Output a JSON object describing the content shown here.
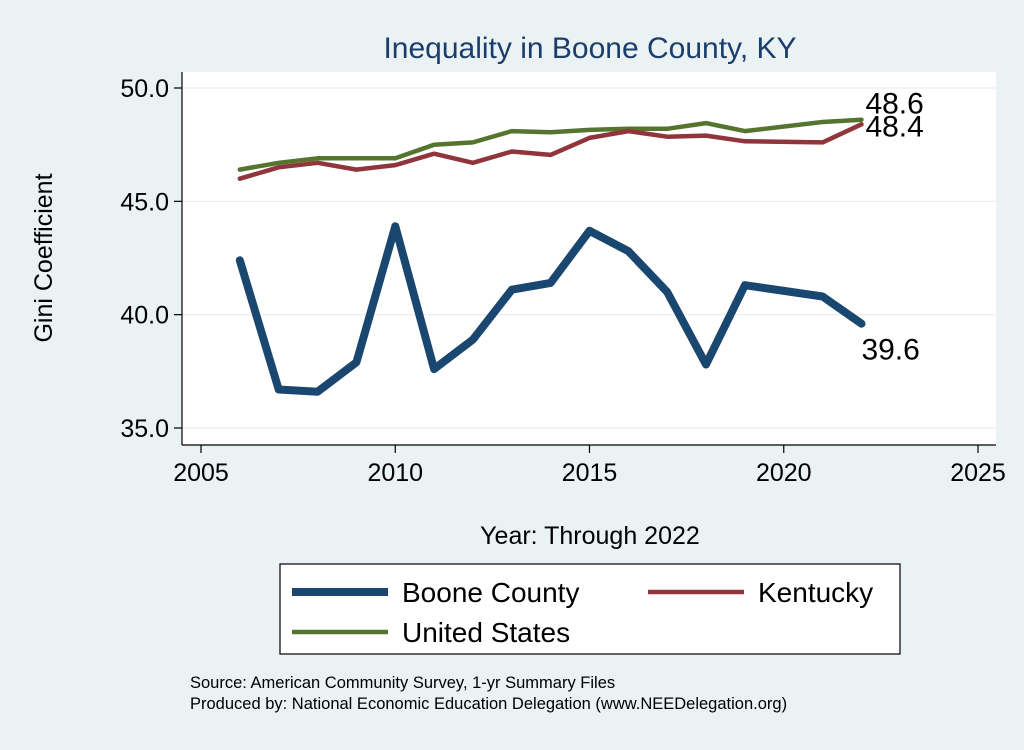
{
  "chart_data": {
    "type": "line",
    "title": "Inequality in Boone County, KY",
    "xlabel": "Year: Through 2022",
    "ylabel": "Gini Coefficient",
    "xlim": [
      2005,
      2025
    ],
    "ylim": [
      35,
      50
    ],
    "x_ticks": [
      2005,
      2010,
      2015,
      2020,
      2025
    ],
    "y_ticks": [
      35.0,
      40.0,
      45.0,
      50.0
    ],
    "y_tick_labels": [
      "35.0",
      "40.0",
      "45.0",
      "50.0"
    ],
    "grid": true,
    "legend_position": "bottom",
    "series": [
      {
        "name": "Boone County",
        "color": "#1a476f",
        "end_label": "39.6",
        "points": [
          [
            2006,
            42.4
          ],
          [
            2007,
            36.7
          ],
          [
            2008,
            36.6
          ],
          [
            2009,
            37.9
          ],
          [
            2010,
            43.9
          ],
          [
            2011,
            37.6
          ],
          [
            2012,
            38.9
          ],
          [
            2013,
            41.1
          ],
          [
            2014,
            41.4
          ],
          [
            2015,
            43.7
          ],
          [
            2016,
            42.8
          ],
          [
            2017,
            41.0
          ],
          [
            2018,
            37.8
          ],
          [
            2019,
            41.3
          ],
          [
            2021,
            40.8
          ],
          [
            2022,
            39.6
          ]
        ]
      },
      {
        "name": "Kentucky",
        "color": "#90353b",
        "end_label": "48.4",
        "points": [
          [
            2006,
            46.0
          ],
          [
            2007,
            46.5
          ],
          [
            2008,
            46.7
          ],
          [
            2009,
            46.4
          ],
          [
            2010,
            46.6
          ],
          [
            2011,
            47.1
          ],
          [
            2012,
            46.7
          ],
          [
            2013,
            47.2
          ],
          [
            2014,
            47.05
          ],
          [
            2015,
            47.8
          ],
          [
            2016,
            48.1
          ],
          [
            2017,
            47.85
          ],
          [
            2018,
            47.9
          ],
          [
            2019,
            47.65
          ],
          [
            2021,
            47.6
          ],
          [
            2022,
            48.4
          ]
        ]
      },
      {
        "name": "United States",
        "color": "#55752f",
        "end_label": "48.6",
        "points": [
          [
            2006,
            46.4
          ],
          [
            2007,
            46.7
          ],
          [
            2008,
            46.9
          ],
          [
            2009,
            46.9
          ],
          [
            2010,
            46.9
          ],
          [
            2011,
            47.5
          ],
          [
            2012,
            47.6
          ],
          [
            2013,
            48.1
          ],
          [
            2014,
            48.05
          ],
          [
            2015,
            48.15
          ],
          [
            2016,
            48.2
          ],
          [
            2017,
            48.2
          ],
          [
            2018,
            48.45
          ],
          [
            2019,
            48.1
          ],
          [
            2021,
            48.5
          ],
          [
            2022,
            48.6
          ]
        ]
      }
    ],
    "notes": [
      "Source: American Community Survey, 1-yr Summary Files",
      "Produced by: National Economic Education Delegation (www.NEEDelegation.org)"
    ]
  }
}
